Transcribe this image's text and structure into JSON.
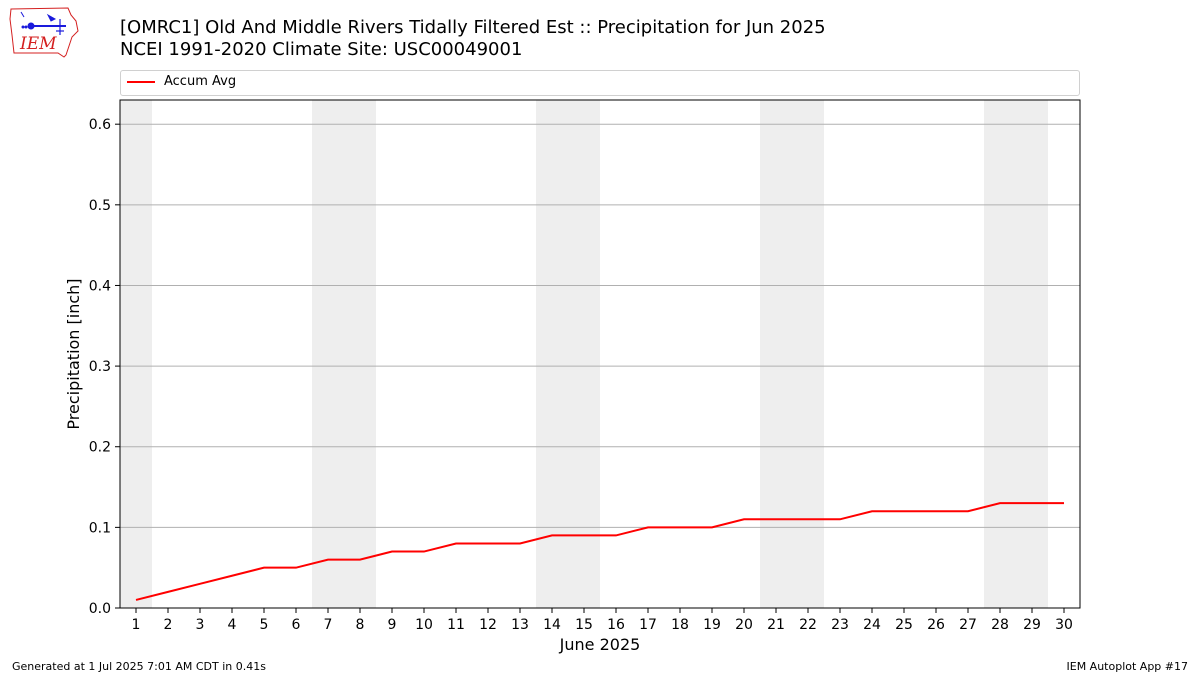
{
  "header": {
    "title_line1": "[OMRC1] Old And Middle Rivers Tidally Filtered Est :: Precipitation for Jun 2025",
    "title_line2": "NCEI 1991-2020 Climate Site: USC00049001"
  },
  "logo": {
    "text": "IEM",
    "icon": "iowa-state-outline-with-weather-symbols"
  },
  "footer": {
    "generated": "Generated at 1 Jul 2025 7:01 AM CDT in 0.41s",
    "app": "IEM Autoplot App #17"
  },
  "colors": {
    "series": "#ff0000",
    "weekend_band": "#eeeeee",
    "grid": "#b0b0b0",
    "logo_red": "#d42020",
    "logo_blue": "#1a1adc"
  },
  "chart_data": {
    "type": "line",
    "xlabel": "June 2025",
    "ylabel": "Precipitation [inch]",
    "xlim": [
      0.5,
      30.5
    ],
    "ylim": [
      0.0,
      0.63
    ],
    "grid": "horizontal",
    "legend_placement": "top",
    "x": [
      1,
      2,
      3,
      4,
      5,
      6,
      7,
      8,
      9,
      10,
      11,
      12,
      13,
      14,
      15,
      16,
      17,
      18,
      19,
      20,
      21,
      22,
      23,
      24,
      25,
      26,
      27,
      28,
      29,
      30
    ],
    "y_ticks": [
      "0.0",
      "0.1",
      "0.2",
      "0.3",
      "0.4",
      "0.5",
      "0.6"
    ],
    "x_ticks": [
      "1",
      "2",
      "3",
      "4",
      "5",
      "6",
      "7",
      "8",
      "9",
      "10",
      "11",
      "12",
      "13",
      "14",
      "15",
      "16",
      "17",
      "18",
      "19",
      "20",
      "21",
      "22",
      "23",
      "24",
      "25",
      "26",
      "27",
      "28",
      "29",
      "30"
    ],
    "weekend_days": [
      1,
      7,
      8,
      14,
      15,
      21,
      22,
      28,
      29
    ],
    "series": [
      {
        "name": "Accum Avg",
        "color": "#ff0000",
        "values": [
          0.01,
          0.02,
          0.03,
          0.04,
          0.05,
          0.05,
          0.06,
          0.06,
          0.07,
          0.07,
          0.08,
          0.08,
          0.08,
          0.09,
          0.09,
          0.09,
          0.1,
          0.1,
          0.1,
          0.11,
          0.11,
          0.11,
          0.11,
          0.12,
          0.12,
          0.12,
          0.12,
          0.13,
          0.13,
          0.13
        ]
      }
    ]
  }
}
